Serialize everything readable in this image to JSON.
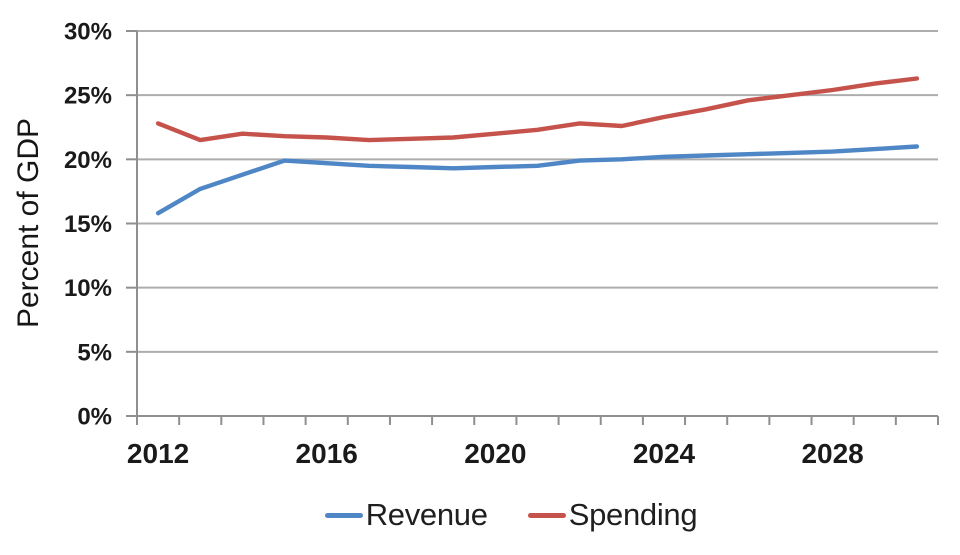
{
  "chart_data": {
    "type": "line",
    "title": "",
    "ylabel": "Percent of GDP",
    "x": [
      2012,
      2013,
      2014,
      2015,
      2016,
      2017,
      2018,
      2019,
      2020,
      2021,
      2022,
      2023,
      2024,
      2025,
      2026,
      2027,
      2028,
      2029,
      2030
    ],
    "series": [
      {
        "name": "Revenue",
        "color": "#4e86c6",
        "values": [
          15.8,
          17.7,
          18.8,
          19.9,
          19.7,
          19.5,
          19.4,
          19.3,
          19.4,
          19.5,
          19.9,
          20.0,
          20.2,
          20.3,
          20.4,
          20.5,
          20.6,
          20.8,
          21.0
        ]
      },
      {
        "name": "Spending",
        "color": "#c5534b",
        "values": [
          22.8,
          21.5,
          22.0,
          21.8,
          21.7,
          21.5,
          21.6,
          21.7,
          22.0,
          22.3,
          22.8,
          22.6,
          23.3,
          23.9,
          24.6,
          25.0,
          25.4,
          25.9,
          26.3
        ]
      }
    ],
    "ylim": [
      0,
      30
    ],
    "ytick_step": 5,
    "ytick_suffix": "%",
    "yticklabels": [
      "0%",
      "5%",
      "10%",
      "15%",
      "20%",
      "25%",
      "30%"
    ],
    "xticks": [
      {
        "index": 0,
        "label": "2012"
      },
      {
        "index": 4,
        "label": "2016"
      },
      {
        "index": 8,
        "label": "2020"
      },
      {
        "index": 12,
        "label": "2024"
      },
      {
        "index": 16,
        "label": "2028"
      }
    ],
    "grid": "horizontal",
    "legend_position": "bottom"
  },
  "colors": {
    "grid": "#adadad",
    "axis": "#8f8f8f",
    "tick_text": "#1a1a1a"
  }
}
